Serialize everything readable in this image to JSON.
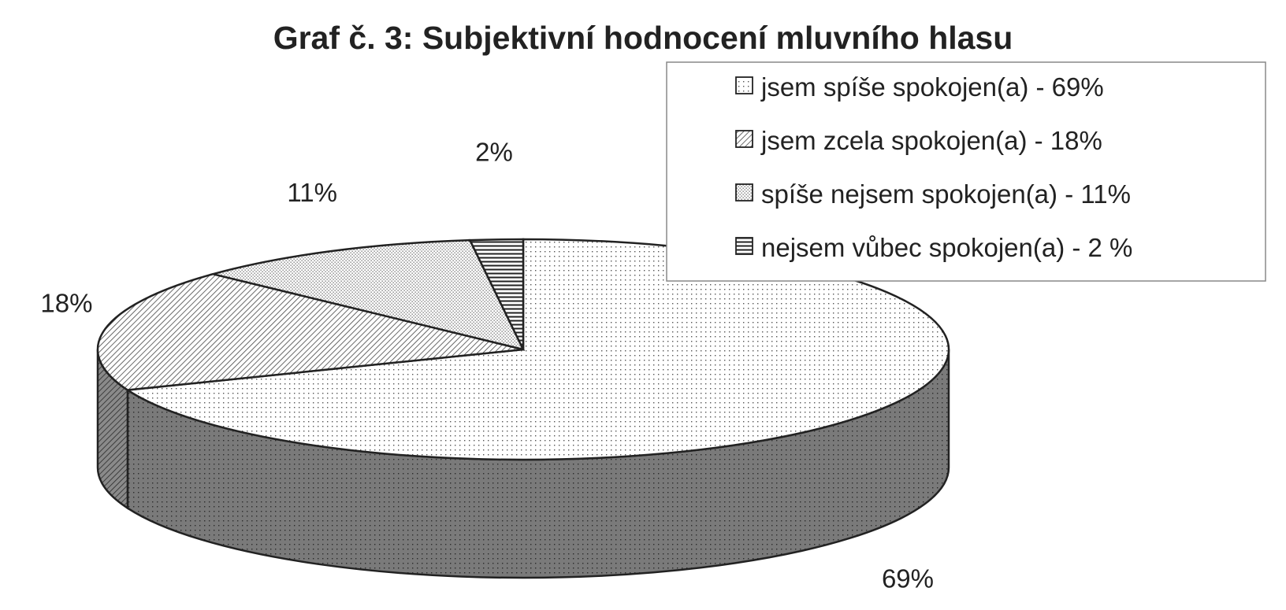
{
  "chart_data": {
    "type": "pie",
    "title": "Graf č. 3: Subjektivní hodnocení mluvního hlasu",
    "is_3d": true,
    "legend_position": "top-right",
    "slices": [
      {
        "label": "jsem spíše spokojen(a) - 69%",
        "value": 69,
        "data_label": "69%",
        "pattern": "fine-dots"
      },
      {
        "label": "jsem zcela spokojen(a) - 18%",
        "value": 18,
        "data_label": "18%",
        "pattern": "diagonal-hatch"
      },
      {
        "label": "spíše nejsem spokojen(a) - 11%",
        "value": 11,
        "data_label": "11%",
        "pattern": "dense-dots"
      },
      {
        "label": "nejsem vůbec spokojen(a) - 2 %",
        "value": 2,
        "data_label": "2%",
        "pattern": "horizontal-lines"
      }
    ]
  }
}
